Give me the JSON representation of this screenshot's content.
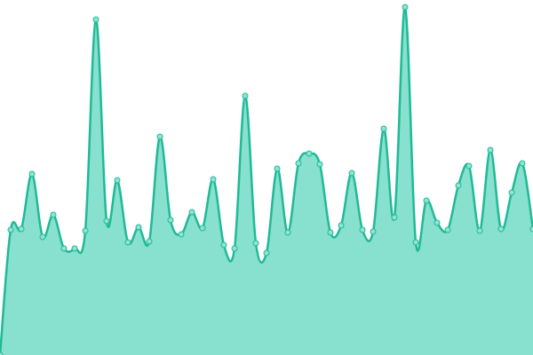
{
  "chart_data": {
    "type": "area",
    "values": [
      0,
      141,
      142,
      204,
      133,
      158,
      120,
      120,
      140,
      378,
      151,
      197,
      127,
      144,
      128,
      246,
      152,
      136,
      161,
      143,
      198,
      124,
      120,
      292,
      126,
      115,
      210,
      138,
      216,
      227,
      215,
      138,
      146,
      205,
      141,
      139,
      255,
      155,
      392,
      127,
      174,
      149,
      141,
      191,
      213,
      140,
      231,
      142,
      183,
      216,
      142
    ],
    "ylim": [
      0,
      400
    ],
    "color": "#1fba96",
    "fill": "#88e0cf",
    "marker_fill": "#8fe3d0"
  }
}
